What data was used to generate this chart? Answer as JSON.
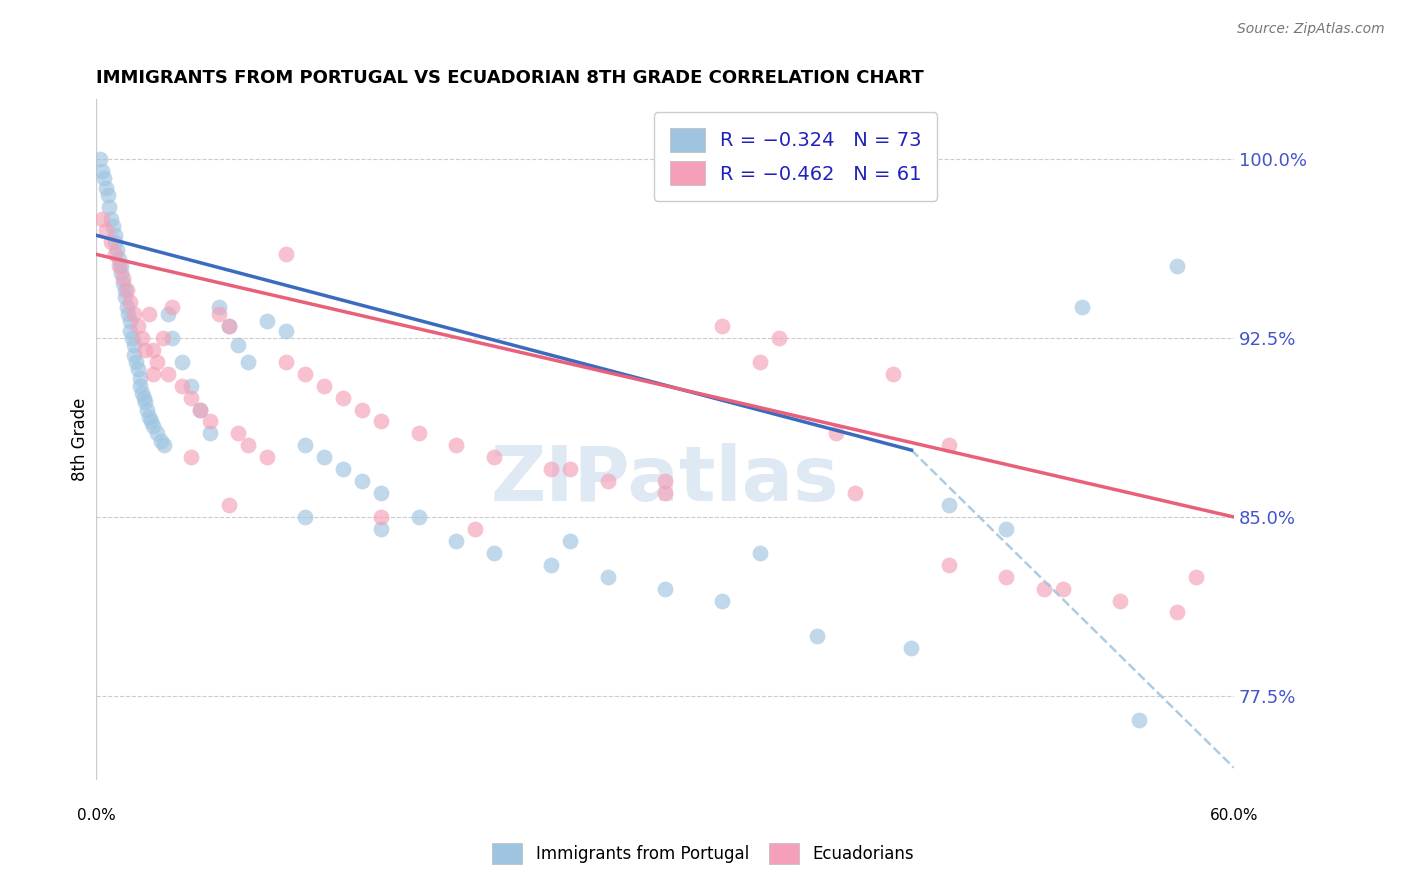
{
  "title": "IMMIGRANTS FROM PORTUGAL VS ECUADORIAN 8TH GRADE CORRELATION CHART",
  "source": "Source: ZipAtlas.com",
  "ylabel": "8th Grade",
  "ylabel_values": [
    77.5,
    85.0,
    92.5,
    100.0
  ],
  "xlim": [
    0.0,
    60.0
  ],
  "ylim": [
    74.0,
    102.5
  ],
  "color_blue": "#9ec4e0",
  "color_pink": "#f4a0b8",
  "color_line_blue": "#3a6bbf",
  "color_line_pink": "#e8607a",
  "color_legend_text": "#2222bb",
  "color_right_ticks": "#4455cc",
  "watermark": "ZIPatlas",
  "blue_line_x0": 0.0,
  "blue_line_x1": 43.0,
  "blue_line_y0": 96.8,
  "blue_line_y1": 87.8,
  "blue_dash_x0": 43.0,
  "blue_dash_x1": 60.0,
  "blue_dash_y0": 87.8,
  "blue_dash_y1": 74.5,
  "pink_line_x0": 0.0,
  "pink_line_x1": 60.0,
  "pink_line_y0": 96.0,
  "pink_line_y1": 85.0,
  "blue_x": [
    0.2,
    0.3,
    0.4,
    0.5,
    0.6,
    0.7,
    0.8,
    0.9,
    1.0,
    1.0,
    1.1,
    1.2,
    1.3,
    1.3,
    1.4,
    1.5,
    1.5,
    1.6,
    1.7,
    1.8,
    1.8,
    1.9,
    2.0,
    2.0,
    2.1,
    2.2,
    2.3,
    2.3,
    2.4,
    2.5,
    2.6,
    2.7,
    2.8,
    2.9,
    3.0,
    3.2,
    3.4,
    3.6,
    3.8,
    4.0,
    4.5,
    5.0,
    5.5,
    6.0,
    6.5,
    7.0,
    7.5,
    8.0,
    9.0,
    10.0,
    11.0,
    12.0,
    13.0,
    14.0,
    15.0,
    17.0,
    19.0,
    21.0,
    24.0,
    27.0,
    30.0,
    33.0,
    38.0,
    43.0,
    45.0,
    48.0,
    52.0,
    55.0,
    57.0,
    11.0,
    15.0,
    25.0,
    35.0
  ],
  "blue_y": [
    100.0,
    99.5,
    99.2,
    98.8,
    98.5,
    98.0,
    97.5,
    97.2,
    96.8,
    96.5,
    96.2,
    95.8,
    95.5,
    95.2,
    94.8,
    94.5,
    94.2,
    93.8,
    93.5,
    93.2,
    92.8,
    92.5,
    92.2,
    91.8,
    91.5,
    91.2,
    90.8,
    90.5,
    90.2,
    90.0,
    89.8,
    89.5,
    89.2,
    89.0,
    88.8,
    88.5,
    88.2,
    88.0,
    93.5,
    92.5,
    91.5,
    90.5,
    89.5,
    88.5,
    93.8,
    93.0,
    92.2,
    91.5,
    93.2,
    92.8,
    88.0,
    87.5,
    87.0,
    86.5,
    86.0,
    85.0,
    84.0,
    83.5,
    83.0,
    82.5,
    82.0,
    81.5,
    80.0,
    79.5,
    85.5,
    84.5,
    93.8,
    76.5,
    95.5,
    85.0,
    84.5,
    84.0,
    83.5
  ],
  "pink_x": [
    0.3,
    0.5,
    0.8,
    1.0,
    1.2,
    1.4,
    1.6,
    1.8,
    2.0,
    2.2,
    2.4,
    2.6,
    2.8,
    3.0,
    3.2,
    3.5,
    3.8,
    4.0,
    4.5,
    5.0,
    5.5,
    6.0,
    6.5,
    7.0,
    7.5,
    8.0,
    9.0,
    10.0,
    11.0,
    12.0,
    13.0,
    14.0,
    15.0,
    17.0,
    19.0,
    21.0,
    24.0,
    27.0,
    30.0,
    33.0,
    36.0,
    39.0,
    42.0,
    45.0,
    48.0,
    51.0,
    54.0,
    57.0,
    3.0,
    5.0,
    7.0,
    10.0,
    15.0,
    20.0,
    25.0,
    30.0,
    35.0,
    40.0,
    45.0,
    50.0,
    58.0
  ],
  "pink_y": [
    97.5,
    97.0,
    96.5,
    96.0,
    95.5,
    95.0,
    94.5,
    94.0,
    93.5,
    93.0,
    92.5,
    92.0,
    93.5,
    92.0,
    91.5,
    92.5,
    91.0,
    93.8,
    90.5,
    90.0,
    89.5,
    89.0,
    93.5,
    93.0,
    88.5,
    88.0,
    87.5,
    91.5,
    91.0,
    90.5,
    90.0,
    89.5,
    89.0,
    88.5,
    88.0,
    87.5,
    87.0,
    86.5,
    86.0,
    93.0,
    92.5,
    88.5,
    91.0,
    88.0,
    82.5,
    82.0,
    81.5,
    81.0,
    91.0,
    87.5,
    85.5,
    96.0,
    85.0,
    84.5,
    87.0,
    86.5,
    91.5,
    86.0,
    83.0,
    82.0,
    82.5
  ]
}
